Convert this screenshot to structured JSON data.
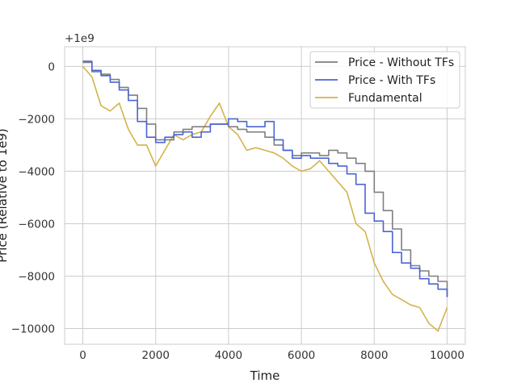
{
  "chart_data": {
    "type": "line",
    "xlabel": "Time",
    "ylabel": "Price (Relative to 1e9)",
    "offset_text": "+1e9",
    "xlim": [
      -500,
      10500
    ],
    "ylim": [
      -10600,
      750
    ],
    "xticks": [
      0,
      2000,
      4000,
      6000,
      8000,
      10000
    ],
    "xtick_labels": [
      "0",
      "2000",
      "4000",
      "6000",
      "8000",
      "10000"
    ],
    "yticks": [
      0,
      -2000,
      -4000,
      -6000,
      -8000,
      -10000
    ],
    "ytick_labels": [
      "0",
      "−2000",
      "−4000",
      "−6000",
      "−8000",
      "−10000"
    ],
    "grid": true,
    "legend_position": "top-right",
    "x": [
      0,
      250,
      500,
      750,
      1000,
      1250,
      1500,
      1750,
      2000,
      2250,
      2500,
      2750,
      3000,
      3250,
      3500,
      3750,
      4000,
      4250,
      4500,
      4750,
      5000,
      5250,
      5500,
      5750,
      6000,
      6250,
      6500,
      6750,
      7000,
      7250,
      7500,
      7750,
      8000,
      8250,
      8500,
      8750,
      9000,
      9250,
      9500,
      9750,
      10000
    ],
    "series": [
      {
        "name": "Price - Without TFs",
        "color": "#7f7f7f",
        "step": true,
        "values": [
          150,
          -200,
          -300,
          -500,
          -800,
          -1100,
          -1600,
          -2200,
          -2800,
          -2800,
          -2500,
          -2400,
          -2300,
          -2300,
          -2200,
          -2200,
          -2300,
          -2400,
          -2500,
          -2500,
          -2700,
          -3000,
          -3200,
          -3400,
          -3300,
          -3300,
          -3400,
          -3200,
          -3300,
          -3500,
          -3700,
          -4000,
          -4800,
          -5500,
          -6200,
          -7000,
          -7600,
          -7800,
          -8000,
          -8200,
          -8800
        ]
      },
      {
        "name": "Price - With TFs",
        "color": "#4a64d6",
        "step": true,
        "values": [
          200,
          -150,
          -350,
          -600,
          -900,
          -1300,
          -2100,
          -2700,
          -2900,
          -2700,
          -2600,
          -2500,
          -2700,
          -2500,
          -2200,
          -2200,
          -2000,
          -2100,
          -2300,
          -2300,
          -2100,
          -2800,
          -3200,
          -3500,
          -3400,
          -3500,
          -3500,
          -3700,
          -3800,
          -4100,
          -4500,
          -5600,
          -5900,
          -6300,
          -7100,
          -7500,
          -7700,
          -8100,
          -8300,
          -8500,
          -8800
        ]
      },
      {
        "name": "Fundamental",
        "color": "#d4b34a",
        "step": false,
        "values": [
          0,
          -400,
          -1500,
          -1700,
          -1400,
          -2400,
          -3000,
          -3000,
          -3800,
          -3200,
          -2600,
          -2800,
          -2600,
          -2500,
          -1900,
          -1400,
          -2300,
          -2600,
          -3200,
          -3100,
          -3200,
          -3300,
          -3500,
          -3800,
          -4000,
          -3900,
          -3600,
          -4000,
          -4400,
          -4800,
          -6000,
          -6300,
          -7500,
          -8200,
          -8700,
          -8900,
          -9100,
          -9200,
          -9800,
          -10100,
          -9200
        ]
      }
    ]
  }
}
